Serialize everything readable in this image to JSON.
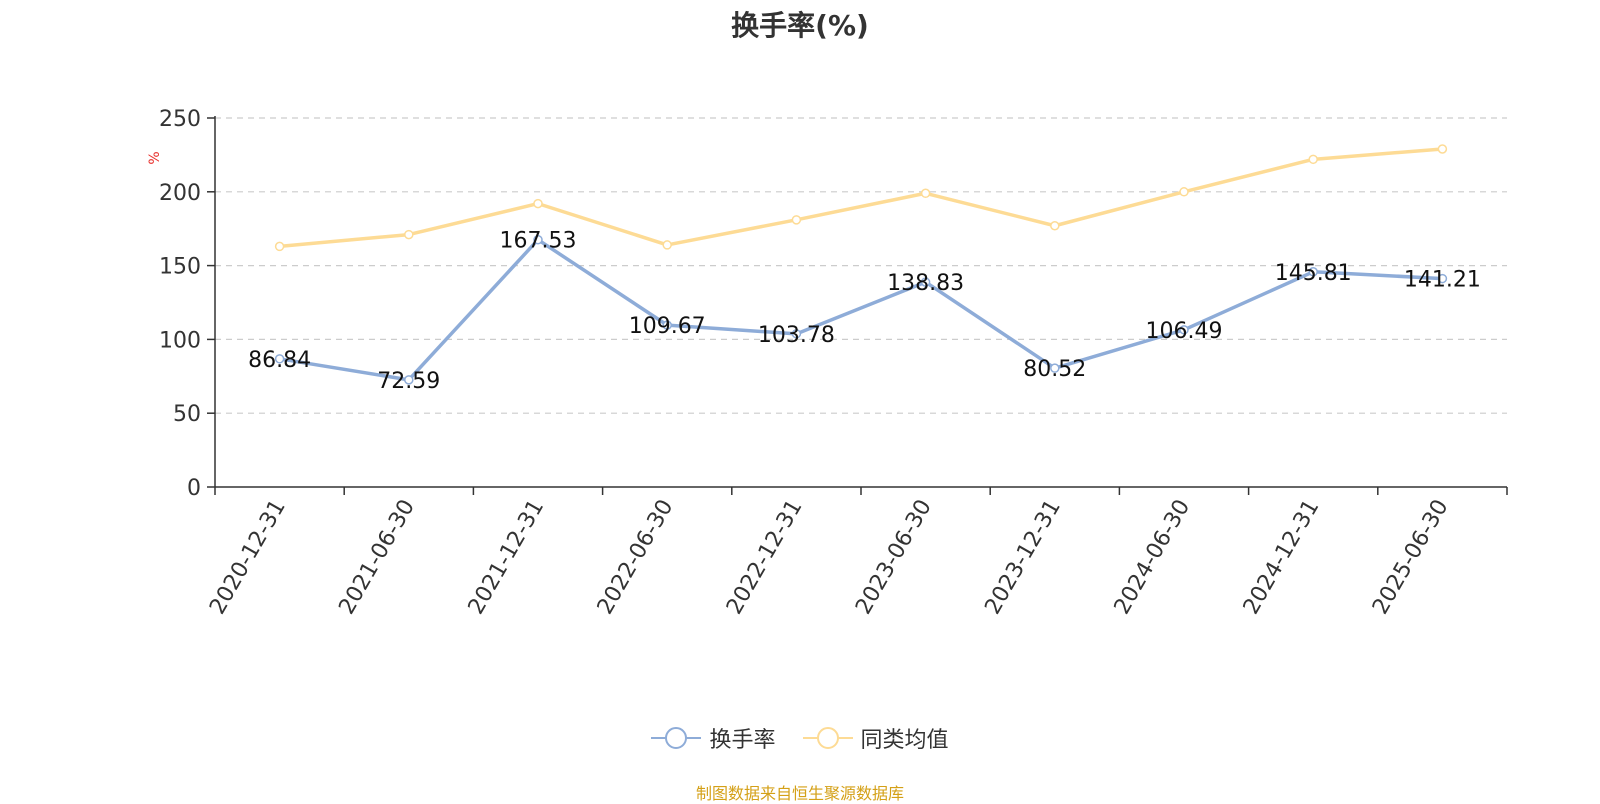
{
  "title": "换手率(%)",
  "source_note": "制图数据来自恒生聚源数据库",
  "chart_data": {
    "type": "line",
    "title": "换手率(%)",
    "ylabel": "%",
    "xlabel": "",
    "ylim": [
      0,
      250
    ],
    "yticks": [
      0,
      50,
      100,
      150,
      200,
      250
    ],
    "grid": true,
    "legend_position": "bottom",
    "categories": [
      "2020-12-31",
      "2021-06-30",
      "2021-12-31",
      "2022-06-30",
      "2022-12-31",
      "2023-06-30",
      "2023-12-31",
      "2024-06-30",
      "2024-12-31",
      "2025-06-30"
    ],
    "series": [
      {
        "name": "换手率",
        "color": "#8eacd8",
        "values": [
          86.84,
          72.59,
          167.53,
          109.67,
          103.78,
          138.83,
          80.52,
          106.49,
          145.81,
          141.21
        ],
        "labels": [
          "86.84",
          "72.59",
          "167.53",
          "109.67",
          "103.78",
          "138.83",
          "80.52",
          "106.49",
          "145.81",
          "141.21"
        ]
      },
      {
        "name": "同类均值",
        "color": "#fddb95",
        "values": [
          163,
          171,
          192,
          164,
          181,
          199,
          177,
          200,
          222,
          229
        ]
      }
    ]
  },
  "colors": {
    "ylabel": "#e8302c",
    "source_note": "#d4a017",
    "axis": "#333333",
    "grid": "#cccccc"
  }
}
